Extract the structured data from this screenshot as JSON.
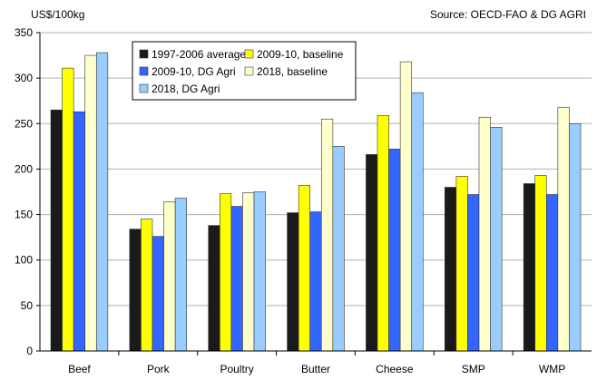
{
  "chart_data": {
    "type": "bar",
    "unit_label": "US$/100kg",
    "source": "Source: OECD-FAO & DG AGRI",
    "categories": [
      "Beef",
      "Pork",
      "Poultry",
      "Butter",
      "Cheese",
      "SMP",
      "WMP"
    ],
    "ylim": [
      0,
      350
    ],
    "yticks": [
      0,
      50,
      100,
      150,
      200,
      250,
      300,
      350
    ],
    "grid": true,
    "legend_position": "top-left",
    "series": [
      {
        "name": "1997-2006 average",
        "color": "#1a1a1a",
        "values": [
          265,
          134,
          138,
          152,
          216,
          180,
          184
        ]
      },
      {
        "name": "2009-10, baseline",
        "color": "#ffff00",
        "values": [
          311,
          145,
          173,
          182,
          259,
          192,
          193
        ]
      },
      {
        "name": "2009-10, DG Agri",
        "color": "#3366ff",
        "values": [
          263,
          126,
          159,
          153,
          222,
          172,
          172
        ]
      },
      {
        "name": "2018, baseline",
        "color": "#ffffcc",
        "values": [
          325,
          164,
          174,
          255,
          318,
          257,
          268
        ]
      },
      {
        "name": "2018, DG Agri",
        "color": "#99ccff",
        "values": [
          328,
          168,
          175,
          225,
          284,
          246,
          250
        ]
      }
    ]
  }
}
